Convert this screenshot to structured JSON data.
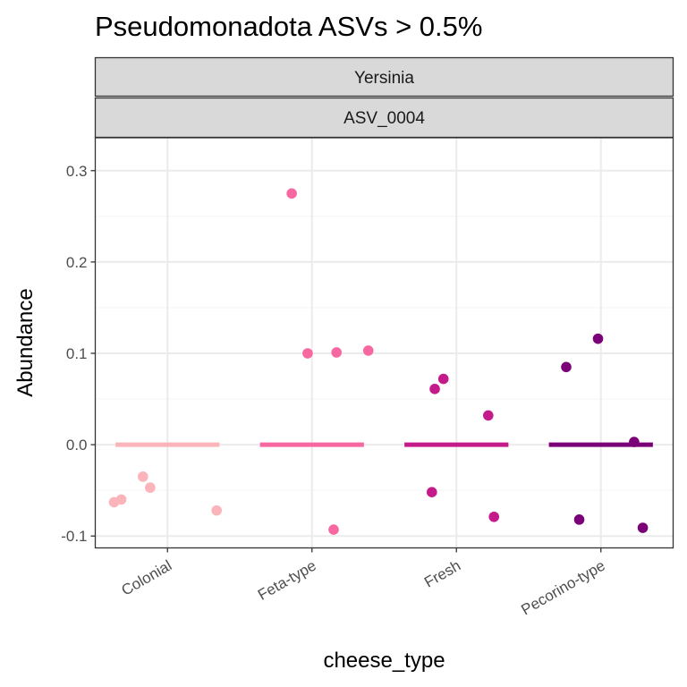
{
  "chart_data": {
    "type": "scatter",
    "title": "Pseudomonadota ASVs > 0.5%",
    "facet_strips": [
      "Yersinia",
      "ASV_0004"
    ],
    "xlabel": "cheese_type",
    "ylabel": "Abundance",
    "categories": [
      "Colonial",
      "Feta-type",
      "Fresh",
      "Pecorino-type"
    ],
    "ylim": [
      -0.113,
      0.336
    ],
    "yticks": [
      -0.1,
      0.0,
      0.1,
      0.2,
      0.3
    ],
    "ytick_labels": [
      "-0.1",
      "0.0",
      "0.1",
      "0.2",
      "0.3"
    ],
    "grid": true,
    "colors": {
      "Colonial": "#fbb4b9",
      "Feta-type": "#f768a1",
      "Fresh": "#c51b8a",
      "Pecorino-type": "#7a0177",
      "strip_fill": "#d9d9d9",
      "strip_border": "#333333",
      "panel_border": "#333333",
      "grid_major": "#ebebeb",
      "grid_minor": "#f5f5f5"
    },
    "series": [
      {
        "category": "Colonial",
        "mean_line": 0.0,
        "points": [
          {
            "offset": -0.37,
            "y": -0.063
          },
          {
            "offset": -0.32,
            "y": -0.06
          },
          {
            "offset": -0.17,
            "y": -0.035
          },
          {
            "offset": -0.12,
            "y": -0.047
          },
          {
            "offset": 0.34,
            "y": -0.072
          }
        ]
      },
      {
        "category": "Feta-type",
        "mean_line": 0.0,
        "points": [
          {
            "offset": -0.14,
            "y": 0.275
          },
          {
            "offset": -0.03,
            "y": 0.1
          },
          {
            "offset": 0.17,
            "y": 0.101
          },
          {
            "offset": 0.39,
            "y": 0.103
          },
          {
            "offset": 0.15,
            "y": -0.093
          }
        ]
      },
      {
        "category": "Fresh",
        "mean_line": 0.0,
        "points": [
          {
            "offset": -0.15,
            "y": 0.061
          },
          {
            "offset": -0.09,
            "y": 0.072
          },
          {
            "offset": 0.22,
            "y": 0.032
          },
          {
            "offset": -0.17,
            "y": -0.052
          },
          {
            "offset": 0.26,
            "y": -0.079
          }
        ]
      },
      {
        "category": "Pecorino-type",
        "mean_line": 0.0,
        "points": [
          {
            "offset": -0.24,
            "y": 0.085
          },
          {
            "offset": -0.02,
            "y": 0.116
          },
          {
            "offset": 0.23,
            "y": 0.003
          },
          {
            "offset": -0.15,
            "y": -0.082
          },
          {
            "offset": 0.29,
            "y": -0.091
          }
        ]
      }
    ]
  }
}
